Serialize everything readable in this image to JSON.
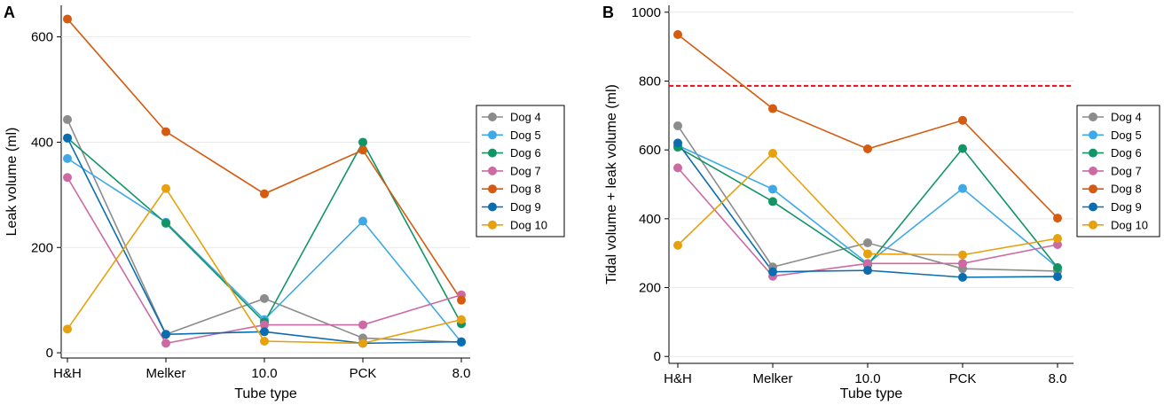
{
  "chart_data": [
    {
      "panel": "A",
      "type": "line",
      "categories": [
        "H&H",
        "Melker",
        "10.0",
        "PCK",
        "8.0"
      ],
      "xlabel": "Tube type",
      "ylabel": "Leak volume (ml)",
      "ylim": [
        -10,
        660
      ],
      "yticks": [
        0,
        200,
        400,
        600
      ],
      "grid": true,
      "legend": "right",
      "series": [
        {
          "name": "Dog 4",
          "color": "#8c8c8c",
          "values": [
            443,
            35,
            103,
            28,
            20
          ]
        },
        {
          "name": "Dog 5",
          "color": "#3ea9e6",
          "values": [
            369,
            248,
            63,
            250,
            20
          ]
        },
        {
          "name": "Dog 6",
          "color": "#119564",
          "values": [
            408,
            246,
            58,
            400,
            55
          ]
        },
        {
          "name": "Dog 7",
          "color": "#cc6aa3",
          "values": [
            333,
            18,
            53,
            53,
            110
          ]
        },
        {
          "name": "Dog 8",
          "color": "#d45b10",
          "values": [
            634,
            420,
            302,
            385,
            100
          ]
        },
        {
          "name": "Dog 9",
          "color": "#0a6db0",
          "values": [
            408,
            35,
            40,
            18,
            21
          ]
        },
        {
          "name": "Dog 10",
          "color": "#e7a10e",
          "values": [
            45,
            312,
            22,
            18,
            63
          ]
        }
      ]
    },
    {
      "panel": "B",
      "type": "line",
      "categories": [
        "H&H",
        "Melker",
        "10.0",
        "PCK",
        "8.0"
      ],
      "xlabel": "Tube type",
      "ylabel": "Tidal volume + leak volume (ml)",
      "ylim": [
        -20,
        1020
      ],
      "yticks": [
        0,
        200,
        400,
        600,
        800,
        1000
      ],
      "grid": true,
      "legend": "right",
      "reference_line": {
        "y": 786,
        "color": "#e0101e",
        "style": "dashed"
      },
      "series": [
        {
          "name": "Dog 4",
          "color": "#8c8c8c",
          "values": [
            670,
            260,
            330,
            255,
            248
          ]
        },
        {
          "name": "Dog 5",
          "color": "#3ea9e6",
          "values": [
            613,
            486,
            270,
            488,
            258
          ]
        },
        {
          "name": "Dog 6",
          "color": "#119564",
          "values": [
            608,
            450,
            266,
            604,
            258
          ]
        },
        {
          "name": "Dog 7",
          "color": "#cc6aa3",
          "values": [
            548,
            233,
            270,
            270,
            325
          ]
        },
        {
          "name": "Dog 8",
          "color": "#d45b10",
          "values": [
            935,
            720,
            603,
            686,
            402
          ]
        },
        {
          "name": "Dog 9",
          "color": "#0a6db0",
          "values": [
            620,
            246,
            250,
            230,
            232
          ]
        },
        {
          "name": "Dog 10",
          "color": "#e7a10e",
          "values": [
            323,
            590,
            298,
            295,
            343
          ]
        }
      ]
    }
  ],
  "panels": {
    "a": {
      "label": "A"
    },
    "b": {
      "label": "B"
    }
  }
}
